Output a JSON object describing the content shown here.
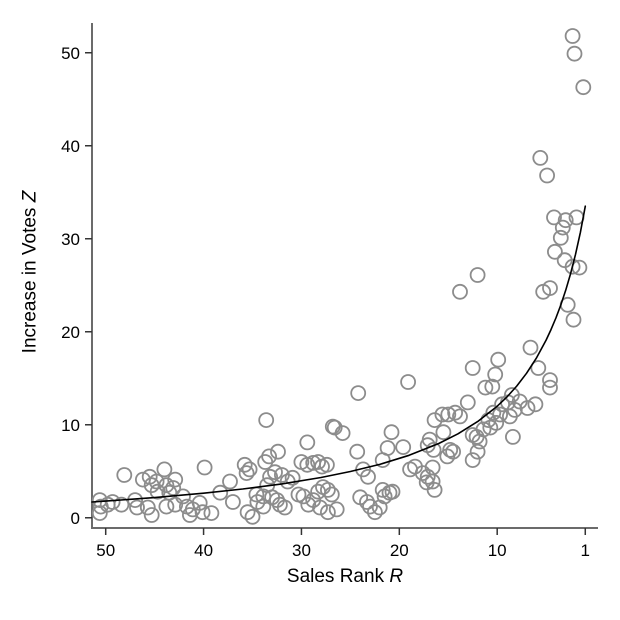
{
  "chart_data": {
    "type": "scatter",
    "title": "",
    "xlabel": {
      "text": "Sales Rank ",
      "italic": "R"
    },
    "ylabel": {
      "text": "Increase in Votes ",
      "italic": "Z"
    },
    "x_ticks": [
      50,
      40,
      30,
      20,
      10,
      1
    ],
    "y_ticks": [
      0,
      10,
      20,
      30,
      40,
      50
    ],
    "x_axis_reversed": true,
    "xlim": [
      51.4,
      -0.3
    ],
    "ylim": [
      -1.1,
      53.2
    ],
    "grid": false,
    "legend_position": "none",
    "colors": {
      "background": "#ffffff",
      "point_stroke": "#8c8c8c",
      "curve": "#000000",
      "spine": "#6b6b6b",
      "tick": "#333333",
      "tick_label": "#000000"
    },
    "marker": {
      "shape": "open-circle",
      "radius": 7,
      "stroke_width": 1.8
    },
    "fit_curve": {
      "model": "Z = 208/(R+4.86) - 2",
      "width": 1.6,
      "points": [
        [
          51.4,
          1.7
        ],
        [
          50,
          1.79
        ],
        [
          45,
          2.17
        ],
        [
          40,
          2.64
        ],
        [
          36,
          3.09
        ],
        [
          32,
          3.64
        ],
        [
          28,
          4.33
        ],
        [
          25,
          4.97
        ],
        [
          22,
          5.74
        ],
        [
          19,
          6.72
        ],
        [
          16,
          7.97
        ],
        [
          14,
          9.03
        ],
        [
          12,
          10.34
        ],
        [
          10,
          12.0
        ],
        [
          9,
          13.0
        ],
        [
          8,
          14.17
        ],
        [
          7,
          15.54
        ],
        [
          6,
          17.16
        ],
        [
          5,
          19.1
        ],
        [
          4.5,
          20.23
        ],
        [
          4,
          21.48
        ],
        [
          3.5,
          22.88
        ],
        [
          3,
          24.46
        ],
        [
          2.5,
          26.25
        ],
        [
          2,
          28.32
        ],
        [
          1.5,
          30.7
        ],
        [
          1,
          33.5
        ]
      ]
    },
    "points": [
      [
        50.6,
        1.9
      ],
      [
        50.5,
        1.2
      ],
      [
        49.8,
        1.4
      ],
      [
        50.6,
        0.5
      ],
      [
        49.3,
        1.7
      ],
      [
        48.4,
        1.4
      ],
      [
        48.1,
        4.6
      ],
      [
        47.0,
        1.9
      ],
      [
        46.8,
        1.1
      ],
      [
        46.2,
        4.1
      ],
      [
        45.5,
        4.4
      ],
      [
        45.3,
        3.5
      ],
      [
        44.8,
        3.9
      ],
      [
        44.7,
        2.8
      ],
      [
        44.0,
        5.2
      ],
      [
        43.8,
        3.5
      ],
      [
        43.5,
        2.7
      ],
      [
        42.9,
        4.1
      ],
      [
        43.1,
        3.2
      ],
      [
        45.7,
        1.1
      ],
      [
        45.3,
        0.3
      ],
      [
        43.8,
        1.2
      ],
      [
        42.9,
        1.4
      ],
      [
        42.1,
        2.3
      ],
      [
        41.7,
        1.2
      ],
      [
        41.4,
        0.3
      ],
      [
        41.1,
        0.9
      ],
      [
        40.4,
        1.6
      ],
      [
        40.1,
        0.6
      ],
      [
        39.9,
        5.4
      ],
      [
        39.2,
        0.5
      ],
      [
        38.3,
        2.7
      ],
      [
        37.3,
        3.9
      ],
      [
        37.0,
        1.7
      ],
      [
        35.8,
        5.7
      ],
      [
        35.6,
        4.8
      ],
      [
        35.3,
        5.2
      ],
      [
        34.6,
        2.5
      ],
      [
        34.5,
        1.7
      ],
      [
        33.9,
        1.2
      ],
      [
        33.5,
        3.5
      ],
      [
        35.5,
        0.6
      ],
      [
        35.0,
        0.1
      ],
      [
        33.6,
        10.5
      ],
      [
        32.4,
        7.1
      ],
      [
        33.3,
        6.6
      ],
      [
        33.7,
        6.0
      ],
      [
        32.7,
        4.9
      ],
      [
        33.2,
        4.4
      ],
      [
        32.0,
        4.6
      ],
      [
        33.9,
        2.3
      ],
      [
        33.0,
        2.2
      ],
      [
        32.5,
        1.9
      ],
      [
        31.7,
        1.1
      ],
      [
        32.2,
        1.4
      ],
      [
        31.4,
        3.9
      ],
      [
        30.9,
        4.3
      ],
      [
        29.4,
        8.1
      ],
      [
        30.0,
        6.0
      ],
      [
        29.4,
        5.7
      ],
      [
        28.8,
        5.9
      ],
      [
        28.3,
        6.0
      ],
      [
        27.9,
        5.5
      ],
      [
        27.4,
        5.7
      ],
      [
        30.3,
        2.5
      ],
      [
        29.8,
        2.3
      ],
      [
        29.3,
        1.4
      ],
      [
        28.8,
        1.9
      ],
      [
        28.3,
        2.8
      ],
      [
        27.8,
        3.3
      ],
      [
        27.3,
        3.0
      ],
      [
        26.9,
        2.5
      ],
      [
        28.1,
        1.1
      ],
      [
        27.3,
        0.6
      ],
      [
        26.4,
        0.9
      ],
      [
        26.8,
        9.8
      ],
      [
        25.8,
        9.1
      ],
      [
        24.3,
        7.1
      ],
      [
        23.7,
        5.2
      ],
      [
        23.2,
        4.4
      ],
      [
        24.0,
        2.2
      ],
      [
        23.3,
        1.7
      ],
      [
        23.0,
        1.2
      ],
      [
        22.5,
        0.6
      ],
      [
        22.0,
        1.1
      ],
      [
        21.7,
        3.0
      ],
      [
        21.5,
        2.3
      ],
      [
        21.0,
        2.7
      ],
      [
        20.7,
        2.8
      ],
      [
        21.7,
        6.2
      ],
      [
        21.2,
        7.5
      ],
      [
        20.8,
        9.2
      ],
      [
        19.6,
        7.6
      ],
      [
        18.9,
        5.2
      ],
      [
        18.4,
        5.5
      ],
      [
        17.6,
        4.8
      ],
      [
        17.1,
        4.4
      ],
      [
        17.2,
        3.8
      ],
      [
        16.6,
        5.4
      ],
      [
        16.5,
        7.3
      ],
      [
        17.1,
        7.8
      ],
      [
        16.4,
        10.5
      ],
      [
        15.6,
        11.1
      ],
      [
        15.0,
        11.1
      ],
      [
        14.3,
        11.3
      ],
      [
        13.8,
        10.9
      ],
      [
        15.5,
        9.2
      ],
      [
        16.9,
        8.4
      ],
      [
        14.8,
        7.3
      ],
      [
        14.5,
        7.1
      ],
      [
        15.1,
        6.6
      ],
      [
        13.0,
        12.4
      ],
      [
        12.5,
        8.9
      ],
      [
        12.1,
        8.7
      ],
      [
        11.8,
        8.2
      ],
      [
        11.4,
        9.5
      ],
      [
        12.0,
        7.1
      ],
      [
        12.5,
        6.2
      ],
      [
        16.6,
        3.9
      ],
      [
        16.4,
        3.0
      ],
      [
        8.5,
        13.2
      ],
      [
        7.7,
        12.5
      ],
      [
        8.9,
        12.4
      ],
      [
        9.5,
        12.2
      ],
      [
        8.2,
        11.6
      ],
      [
        6.9,
        11.8
      ],
      [
        6.1,
        12.2
      ],
      [
        10.4,
        11.3
      ],
      [
        9.7,
        11.1
      ],
      [
        8.7,
        10.9
      ],
      [
        10.9,
        10.5
      ],
      [
        10.1,
        10.2
      ],
      [
        10.7,
        9.7
      ],
      [
        8.4,
        8.7
      ],
      [
        13.8,
        24.3
      ],
      [
        12.0,
        26.1
      ],
      [
        5.3,
        24.3
      ],
      [
        4.6,
        24.7
      ],
      [
        2.8,
        22.9
      ],
      [
        2.2,
        21.3
      ],
      [
        6.6,
        18.3
      ],
      [
        9.9,
        17.0
      ],
      [
        12.5,
        16.1
      ],
      [
        10.2,
        15.4
      ],
      [
        10.5,
        14.1
      ],
      [
        11.2,
        14.0
      ],
      [
        5.8,
        16.1
      ],
      [
        4.6,
        14.8
      ],
      [
        4.6,
        14.0
      ],
      [
        2.3,
        51.8
      ],
      [
        2.1,
        49.9
      ],
      [
        1.2,
        46.3
      ],
      [
        5.6,
        38.7
      ],
      [
        4.9,
        36.8
      ],
      [
        4.2,
        32.3
      ],
      [
        3.0,
        32.0
      ],
      [
        1.9,
        32.3
      ],
      [
        3.3,
        31.2
      ],
      [
        3.5,
        30.1
      ],
      [
        4.1,
        28.6
      ],
      [
        3.1,
        27.7
      ],
      [
        2.3,
        27.0
      ],
      [
        1.6,
        26.9
      ],
      [
        24.2,
        13.4
      ],
      [
        19.1,
        14.6
      ],
      [
        26.6,
        9.7
      ]
    ]
  }
}
